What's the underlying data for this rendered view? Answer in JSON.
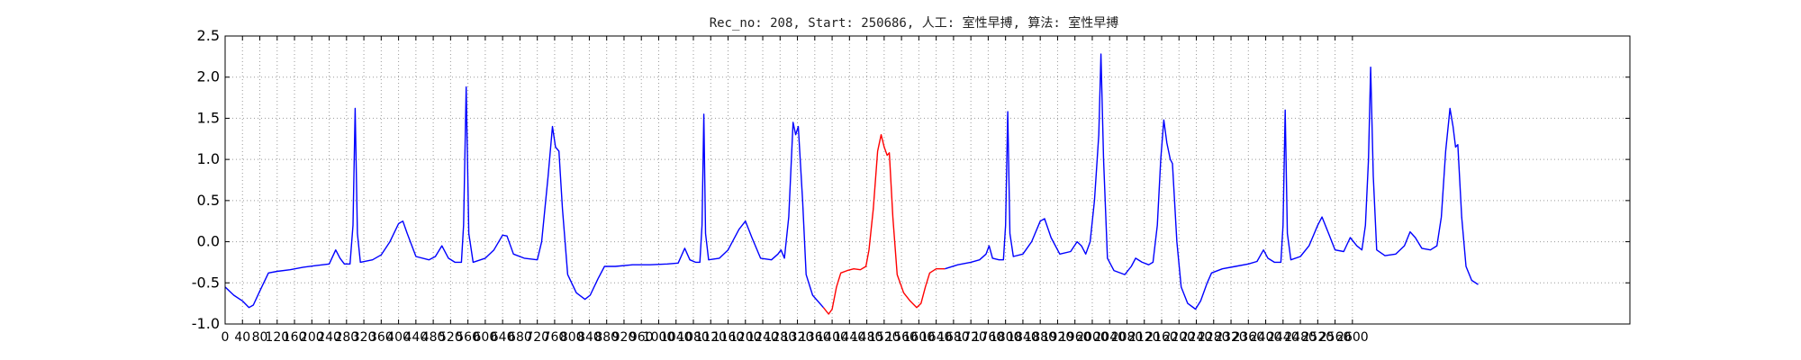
{
  "chart_data": {
    "type": "line",
    "title": "Rec_no: 208, Start: 250686, 人工: 室性早搏, 算法: 室性早搏",
    "xlabel": "",
    "ylabel": "",
    "xlim": [
      0,
      3240
    ],
    "ylim": [
      -1.0,
      2.5
    ],
    "grid": true,
    "yticks": [
      "2.5",
      "2.0",
      "1.5",
      "1.0",
      "0.5",
      "0.0",
      "-0.5",
      "-1.0"
    ],
    "yticks_values": [
      2.5,
      2.0,
      1.5,
      1.0,
      0.5,
      0.0,
      -0.5,
      -1.0
    ],
    "xtick_values": [
      0,
      40,
      80,
      120,
      160,
      200,
      240,
      280,
      320,
      360,
      400,
      440,
      480,
      520,
      560,
      600,
      640,
      680,
      720,
      760,
      800,
      840,
      880,
      920,
      960,
      1000,
      1040,
      1080,
      1120,
      1160,
      1200,
      1240,
      1280,
      1320,
      1360,
      1400,
      1440,
      1480,
      1520,
      1560,
      1600,
      1640,
      1680,
      1720,
      1760,
      1800,
      1840,
      1880,
      1920,
      1960,
      2000,
      2040,
      2080,
      2120,
      2160,
      2200,
      2240,
      2280,
      2320,
      2360,
      2400,
      2440,
      2480,
      2520,
      2560,
      2600
    ],
    "xtick_labels": [
      "0",
      "40",
      "80",
      "120",
      "160",
      "200",
      "240",
      "280",
      "320",
      "360",
      "400",
      "440",
      "480",
      "520",
      "560",
      "600",
      "640",
      "680",
      "720",
      "760",
      "800",
      "840",
      "880",
      "920",
      "960",
      "1000",
      "1040",
      "1080",
      "1120",
      "1160",
      "1200",
      "1240",
      "1280",
      "1320",
      "1360",
      "1400",
      "1440",
      "1480",
      "1520",
      "1560",
      "1600",
      "1640",
      "1680",
      "1720",
      "1760",
      "1800",
      "1840",
      "1880",
      "1920",
      "1960",
      "2000",
      "2040",
      "2080",
      "2120",
      "2160",
      "2200",
      "2240",
      "2280",
      "2320",
      "2360",
      "2400",
      "2440",
      "2480",
      "2520",
      "2560",
      "2600"
    ],
    "series": [
      {
        "color": "#0000ff",
        "points": [
          [
            0,
            -0.55
          ],
          [
            20,
            -0.65
          ],
          [
            40,
            -0.72
          ],
          [
            55,
            -0.8
          ],
          [
            65,
            -0.77
          ],
          [
            80,
            -0.6
          ],
          [
            100,
            -0.38
          ],
          [
            120,
            -0.36
          ],
          [
            150,
            -0.34
          ],
          [
            180,
            -0.31
          ],
          [
            210,
            -0.29
          ],
          [
            240,
            -0.27
          ],
          [
            255,
            -0.1
          ],
          [
            265,
            -0.2
          ],
          [
            275,
            -0.27
          ],
          [
            288,
            -0.27
          ],
          [
            295,
            0.2
          ],
          [
            300,
            1.62
          ],
          [
            305,
            0.1
          ],
          [
            312,
            -0.25
          ],
          [
            340,
            -0.22
          ],
          [
            360,
            -0.16
          ],
          [
            380,
            0.0
          ],
          [
            400,
            0.22
          ],
          [
            410,
            0.25
          ],
          [
            420,
            0.1
          ],
          [
            440,
            -0.18
          ],
          [
            470,
            -0.22
          ],
          [
            485,
            -0.18
          ],
          [
            500,
            -0.05
          ],
          [
            515,
            -0.2
          ],
          [
            530,
            -0.25
          ],
          [
            545,
            -0.25
          ],
          [
            550,
            0.2
          ],
          [
            556,
            1.88
          ],
          [
            562,
            0.1
          ],
          [
            572,
            -0.25
          ],
          [
            600,
            -0.2
          ],
          [
            620,
            -0.1
          ],
          [
            640,
            0.08
          ],
          [
            650,
            0.07
          ],
          [
            665,
            -0.15
          ],
          [
            690,
            -0.2
          ],
          [
            720,
            -0.22
          ],
          [
            730,
            0.0
          ],
          [
            745,
            0.8
          ],
          [
            755,
            1.4
          ],
          [
            762,
            1.15
          ],
          [
            770,
            1.1
          ],
          [
            778,
            0.4
          ],
          [
            790,
            -0.4
          ],
          [
            810,
            -0.62
          ],
          [
            830,
            -0.7
          ],
          [
            842,
            -0.65
          ],
          [
            860,
            -0.45
          ],
          [
            875,
            -0.3
          ],
          [
            900,
            -0.3
          ],
          [
            940,
            -0.28
          ],
          [
            980,
            -0.28
          ],
          [
            1020,
            -0.27
          ],
          [
            1045,
            -0.26
          ],
          [
            1060,
            -0.08
          ],
          [
            1072,
            -0.22
          ],
          [
            1085,
            -0.25
          ],
          [
            1095,
            -0.25
          ],
          [
            1100,
            0.2
          ],
          [
            1104,
            1.55
          ],
          [
            1108,
            0.1
          ],
          [
            1115,
            -0.22
          ],
          [
            1140,
            -0.2
          ],
          [
            1160,
            -0.1
          ],
          [
            1185,
            0.15
          ],
          [
            1200,
            0.25
          ],
          [
            1215,
            0.05
          ],
          [
            1235,
            -0.2
          ],
          [
            1260,
            -0.22
          ],
          [
            1275,
            -0.15
          ],
          [
            1282,
            -0.1
          ],
          [
            1290,
            -0.2
          ],
          [
            1300,
            0.3
          ],
          [
            1310,
            1.45
          ],
          [
            1316,
            1.3
          ],
          [
            1322,
            1.4
          ],
          [
            1332,
            0.5
          ],
          [
            1340,
            -0.4
          ],
          [
            1355,
            -0.65
          ],
          [
            1380,
            -0.8
          ]
        ]
      },
      {
        "color": "#ff0000",
        "points": [
          [
            1380,
            -0.8
          ],
          [
            1392,
            -0.88
          ],
          [
            1400,
            -0.82
          ],
          [
            1410,
            -0.55
          ],
          [
            1420,
            -0.38
          ],
          [
            1435,
            -0.35
          ],
          [
            1450,
            -0.33
          ],
          [
            1465,
            -0.34
          ],
          [
            1478,
            -0.3
          ],
          [
            1485,
            -0.1
          ],
          [
            1495,
            0.4
          ],
          [
            1505,
            1.1
          ],
          [
            1513,
            1.3
          ],
          [
            1520,
            1.15
          ],
          [
            1527,
            1.05
          ],
          [
            1532,
            1.08
          ],
          [
            1540,
            0.3
          ],
          [
            1550,
            -0.4
          ],
          [
            1565,
            -0.62
          ],
          [
            1580,
            -0.72
          ],
          [
            1595,
            -0.8
          ],
          [
            1605,
            -0.75
          ],
          [
            1615,
            -0.55
          ],
          [
            1625,
            -0.38
          ],
          [
            1640,
            -0.33
          ],
          [
            1660,
            -0.33
          ]
        ]
      },
      {
        "color": "#0000ff",
        "points": [
          [
            1660,
            -0.33
          ],
          [
            1690,
            -0.28
          ],
          [
            1720,
            -0.25
          ],
          [
            1740,
            -0.22
          ],
          [
            1755,
            -0.15
          ],
          [
            1762,
            -0.05
          ],
          [
            1770,
            -0.2
          ],
          [
            1785,
            -0.22
          ],
          [
            1795,
            -0.22
          ],
          [
            1800,
            0.2
          ],
          [
            1805,
            1.58
          ],
          [
            1810,
            0.1
          ],
          [
            1818,
            -0.18
          ],
          [
            1840,
            -0.15
          ],
          [
            1860,
            0.0
          ],
          [
            1880,
            0.25
          ],
          [
            1890,
            0.28
          ],
          [
            1905,
            0.05
          ],
          [
            1925,
            -0.15
          ],
          [
            1950,
            -0.12
          ],
          [
            1965,
            0.0
          ],
          [
            1975,
            -0.05
          ],
          [
            1985,
            -0.15
          ],
          [
            1995,
            0.0
          ],
          [
            2005,
            0.5
          ],
          [
            2015,
            1.3
          ],
          [
            2020,
            2.28
          ],
          [
            2026,
            1.0
          ],
          [
            2035,
            -0.2
          ],
          [
            2050,
            -0.35
          ],
          [
            2075,
            -0.4
          ],
          [
            2090,
            -0.3
          ],
          [
            2100,
            -0.2
          ],
          [
            2115,
            -0.25
          ],
          [
            2130,
            -0.28
          ],
          [
            2140,
            -0.25
          ],
          [
            2150,
            0.2
          ],
          [
            2158,
            1.0
          ],
          [
            2165,
            1.48
          ],
          [
            2172,
            1.2
          ],
          [
            2180,
            1.0
          ],
          [
            2185,
            0.95
          ],
          [
            2195,
            0.0
          ],
          [
            2205,
            -0.55
          ],
          [
            2220,
            -0.75
          ],
          [
            2238,
            -0.82
          ],
          [
            2250,
            -0.72
          ],
          [
            2265,
            -0.5
          ],
          [
            2275,
            -0.38
          ],
          [
            2300,
            -0.33
          ],
          [
            2330,
            -0.3
          ],
          [
            2360,
            -0.27
          ],
          [
            2380,
            -0.24
          ],
          [
            2395,
            -0.1
          ],
          [
            2405,
            -0.2
          ],
          [
            2420,
            -0.25
          ],
          [
            2435,
            -0.25
          ],
          [
            2440,
            0.2
          ],
          [
            2445,
            1.6
          ],
          [
            2450,
            0.1
          ],
          [
            2458,
            -0.22
          ],
          [
            2480,
            -0.18
          ],
          [
            2500,
            -0.05
          ],
          [
            2520,
            0.2
          ],
          [
            2530,
            0.3
          ],
          [
            2545,
            0.1
          ],
          [
            2560,
            -0.1
          ],
          [
            2580,
            -0.12
          ],
          [
            2595,
            0.05
          ],
          [
            2610,
            -0.05
          ],
          [
            2622,
            -0.1
          ],
          [
            2630,
            0.2
          ],
          [
            2637,
            1.0
          ],
          [
            2642,
            2.12
          ],
          [
            2648,
            0.8
          ],
          [
            2656,
            -0.1
          ],
          [
            2675,
            -0.17
          ],
          [
            2700,
            -0.15
          ],
          [
            2720,
            -0.05
          ],
          [
            2733,
            0.12
          ],
          [
            2745,
            0.05
          ],
          [
            2760,
            -0.08
          ],
          [
            2780,
            -0.1
          ],
          [
            2795,
            -0.05
          ],
          [
            2805,
            0.3
          ],
          [
            2815,
            1.1
          ],
          [
            2825,
            1.62
          ],
          [
            2832,
            1.4
          ],
          [
            2838,
            1.15
          ],
          [
            2843,
            1.18
          ],
          [
            2852,
            0.3
          ],
          [
            2862,
            -0.3
          ],
          [
            2875,
            -0.47
          ],
          [
            2890,
            -0.52
          ]
        ]
      }
    ]
  }
}
